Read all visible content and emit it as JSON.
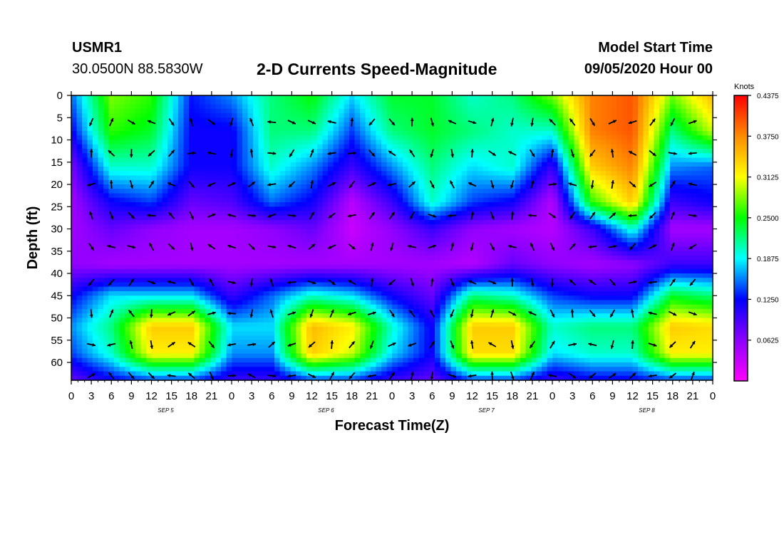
{
  "header": {
    "station_id": "USMR1",
    "coordinates": "30.0500N 88.5830W",
    "title": "2-D Currents Speed-Magnitude",
    "model_start_label": "Model Start Time",
    "model_start_value": "09/05/2020 Hour 00"
  },
  "colors": {
    "scale": [
      "#ff00ff",
      "#8c00ff",
      "#0000ff",
      "#00ffff",
      "#00ff00",
      "#ffff00",
      "#ff8c00",
      "#ff0000"
    ],
    "arrows": "#000000",
    "axes": "#000000"
  },
  "chart_data": {
    "type": "heatmap",
    "xlabel": "Forecast Time(Z)",
    "ylabel": "Depth (ft)",
    "x_ticks": [
      "0",
      "3",
      "6",
      "9",
      "12",
      "15",
      "18",
      "21",
      "0",
      "3",
      "6",
      "9",
      "12",
      "15",
      "18",
      "21",
      "0",
      "3",
      "6",
      "9",
      "12",
      "15",
      "18",
      "21",
      "0",
      "3",
      "6",
      "9",
      "12",
      "15",
      "18",
      "21",
      "0"
    ],
    "day_labels": [
      "SEP 5",
      "SEP 6",
      "SEP 7",
      "SEP 8"
    ],
    "y_ticks": [
      "0",
      "5",
      "10",
      "15",
      "20",
      "25",
      "30",
      "35",
      "40",
      "45",
      "50",
      "55",
      "60"
    ],
    "y_range": [
      0,
      64
    ],
    "x_range_hours": [
      0,
      96
    ],
    "colorbar": {
      "label": "Knots",
      "range": [
        0,
        0.4375
      ],
      "ticks": [
        "0.4375",
        "0.3750",
        "0.3125",
        "0.2500",
        "0.1875",
        "0.1250",
        "0.0625"
      ]
    },
    "depths": [
      0,
      8,
      16,
      24,
      30,
      38,
      45,
      52,
      58,
      64
    ],
    "hours": [
      0,
      6,
      12,
      18,
      24,
      30,
      36,
      42,
      48,
      54,
      60,
      66,
      72,
      78,
      84,
      90,
      96
    ],
    "speed": [
      [
        0.15,
        0.28,
        0.26,
        0.13,
        0.16,
        0.22,
        0.25,
        0.18,
        0.24,
        0.24,
        0.2,
        0.22,
        0.28,
        0.38,
        0.4,
        0.28,
        0.35
      ],
      [
        0.12,
        0.26,
        0.24,
        0.12,
        0.12,
        0.22,
        0.22,
        0.14,
        0.22,
        0.24,
        0.22,
        0.2,
        0.2,
        0.38,
        0.4,
        0.22,
        0.3
      ],
      [
        0.07,
        0.2,
        0.2,
        0.12,
        0.12,
        0.2,
        0.16,
        0.1,
        0.16,
        0.22,
        0.18,
        0.2,
        0.1,
        0.34,
        0.38,
        0.16,
        0.15
      ],
      [
        0.05,
        0.12,
        0.14,
        0.08,
        0.09,
        0.15,
        0.12,
        0.04,
        0.1,
        0.2,
        0.14,
        0.12,
        0.04,
        0.26,
        0.34,
        0.1,
        0.12
      ],
      [
        0.05,
        0.08,
        0.06,
        0.05,
        0.05,
        0.06,
        0.08,
        0.03,
        0.06,
        0.1,
        0.06,
        0.05,
        0.04,
        0.1,
        0.2,
        0.05,
        0.05
      ],
      [
        0.06,
        0.05,
        0.05,
        0.05,
        0.05,
        0.05,
        0.05,
        0.05,
        0.05,
        0.05,
        0.04,
        0.08,
        0.06,
        0.05,
        0.06,
        0.1,
        0.1
      ],
      [
        0.12,
        0.18,
        0.18,
        0.18,
        0.1,
        0.15,
        0.2,
        0.18,
        0.12,
        0.08,
        0.22,
        0.2,
        0.14,
        0.12,
        0.12,
        0.24,
        0.22
      ],
      [
        0.16,
        0.22,
        0.34,
        0.34,
        0.18,
        0.18,
        0.35,
        0.32,
        0.2,
        0.12,
        0.34,
        0.34,
        0.2,
        0.22,
        0.22,
        0.34,
        0.33
      ],
      [
        0.14,
        0.2,
        0.32,
        0.32,
        0.16,
        0.16,
        0.34,
        0.3,
        0.18,
        0.12,
        0.33,
        0.33,
        0.18,
        0.2,
        0.2,
        0.32,
        0.32
      ],
      [
        0.08,
        0.12,
        0.14,
        0.14,
        0.1,
        0.1,
        0.14,
        0.14,
        0.1,
        0.08,
        0.14,
        0.14,
        0.1,
        0.12,
        0.12,
        0.14,
        0.14
      ]
    ]
  }
}
